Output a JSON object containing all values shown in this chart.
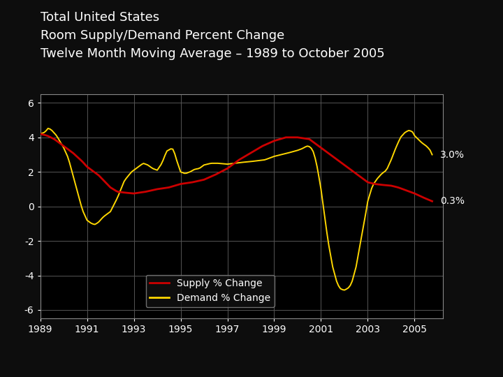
{
  "title_lines": [
    "Total United States",
    "Room Supply/Demand Percent Change",
    "Twelve Month Moving Average – 1989 to October 2005"
  ],
  "background_color": "#0d0d0d",
  "plot_bg_color": "#000000",
  "bottom_bar_color": "#8B3E10",
  "supply_color": "#CC0000",
  "demand_color": "#FFD700",
  "supply_label": "Supply % Change",
  "demand_label": "Demand % Change",
  "supply_end_label": "0.3%",
  "demand_end_label": "3.0%",
  "yticks": [
    -6,
    -4,
    -2,
    0,
    2,
    4,
    6
  ],
  "xtick_years": [
    1989,
    1991,
    1993,
    1995,
    1997,
    1999,
    2001,
    2003,
    2005
  ],
  "xlim": [
    1989.0,
    2006.2
  ],
  "ylim": [
    -6.5,
    6.5
  ],
  "grid_color": "#555555",
  "title_fontsize": 13,
  "label_fontsize": 10,
  "tick_fontsize": 10,
  "supply_ctrl": [
    [
      1989.0,
      4.2
    ],
    [
      1989.3,
      4.1
    ],
    [
      1989.6,
      3.9
    ],
    [
      1990.0,
      3.5
    ],
    [
      1990.4,
      3.1
    ],
    [
      1990.8,
      2.6
    ],
    [
      1991.0,
      2.3
    ],
    [
      1991.5,
      1.8
    ],
    [
      1992.0,
      1.1
    ],
    [
      1992.3,
      0.85
    ],
    [
      1992.6,
      0.8
    ],
    [
      1993.0,
      0.75
    ],
    [
      1993.5,
      0.85
    ],
    [
      1994.0,
      1.0
    ],
    [
      1994.5,
      1.1
    ],
    [
      1995.0,
      1.3
    ],
    [
      1995.5,
      1.4
    ],
    [
      1996.0,
      1.55
    ],
    [
      1996.5,
      1.85
    ],
    [
      1997.0,
      2.2
    ],
    [
      1997.5,
      2.7
    ],
    [
      1998.0,
      3.1
    ],
    [
      1998.5,
      3.5
    ],
    [
      1999.0,
      3.8
    ],
    [
      1999.5,
      4.0
    ],
    [
      2000.0,
      4.0
    ],
    [
      2000.5,
      3.9
    ],
    [
      2001.0,
      3.4
    ],
    [
      2001.5,
      2.9
    ],
    [
      2002.0,
      2.4
    ],
    [
      2002.5,
      1.9
    ],
    [
      2003.0,
      1.4
    ],
    [
      2003.3,
      1.3
    ],
    [
      2003.6,
      1.25
    ],
    [
      2004.0,
      1.2
    ],
    [
      2004.3,
      1.1
    ],
    [
      2004.6,
      0.95
    ],
    [
      2005.0,
      0.75
    ],
    [
      2005.4,
      0.5
    ],
    [
      2005.75,
      0.3
    ]
  ],
  "demand_ctrl": [
    [
      1989.0,
      4.2
    ],
    [
      1989.2,
      4.3
    ],
    [
      1989.35,
      4.55
    ],
    [
      1989.5,
      4.4
    ],
    [
      1989.7,
      4.1
    ],
    [
      1990.0,
      3.4
    ],
    [
      1990.2,
      2.8
    ],
    [
      1990.4,
      1.8
    ],
    [
      1990.6,
      0.8
    ],
    [
      1990.8,
      -0.2
    ],
    [
      1991.0,
      -0.8
    ],
    [
      1991.2,
      -1.0
    ],
    [
      1991.35,
      -1.05
    ],
    [
      1991.5,
      -0.9
    ],
    [
      1991.7,
      -0.6
    ],
    [
      1992.0,
      -0.3
    ],
    [
      1992.3,
      0.5
    ],
    [
      1992.6,
      1.5
    ],
    [
      1992.9,
      2.0
    ],
    [
      1993.0,
      2.1
    ],
    [
      1993.2,
      2.3
    ],
    [
      1993.4,
      2.5
    ],
    [
      1993.6,
      2.4
    ],
    [
      1993.8,
      2.2
    ],
    [
      1994.0,
      2.1
    ],
    [
      1994.2,
      2.5
    ],
    [
      1994.4,
      3.2
    ],
    [
      1994.6,
      3.35
    ],
    [
      1994.7,
      3.3
    ],
    [
      1994.8,
      2.8
    ],
    [
      1995.0,
      2.0
    ],
    [
      1995.2,
      1.9
    ],
    [
      1995.4,
      2.0
    ],
    [
      1995.6,
      2.15
    ],
    [
      1995.8,
      2.2
    ],
    [
      1996.0,
      2.4
    ],
    [
      1996.3,
      2.5
    ],
    [
      1996.6,
      2.5
    ],
    [
      1997.0,
      2.45
    ],
    [
      1997.3,
      2.5
    ],
    [
      1997.6,
      2.55
    ],
    [
      1998.0,
      2.6
    ],
    [
      1998.3,
      2.65
    ],
    [
      1998.6,
      2.7
    ],
    [
      1999.0,
      2.9
    ],
    [
      1999.3,
      3.0
    ],
    [
      1999.6,
      3.1
    ],
    [
      2000.0,
      3.25
    ],
    [
      2000.2,
      3.35
    ],
    [
      2000.4,
      3.5
    ],
    [
      2000.55,
      3.45
    ],
    [
      2000.7,
      3.1
    ],
    [
      2000.85,
      2.2
    ],
    [
      2001.0,
      1.0
    ],
    [
      2001.15,
      -0.5
    ],
    [
      2001.3,
      -2.0
    ],
    [
      2001.5,
      -3.5
    ],
    [
      2001.7,
      -4.5
    ],
    [
      2001.85,
      -4.8
    ],
    [
      2002.0,
      -4.85
    ],
    [
      2002.15,
      -4.75
    ],
    [
      2002.3,
      -4.5
    ],
    [
      2002.5,
      -3.5
    ],
    [
      2002.7,
      -2.0
    ],
    [
      2002.9,
      -0.5
    ],
    [
      2003.0,
      0.3
    ],
    [
      2003.2,
      1.2
    ],
    [
      2003.4,
      1.6
    ],
    [
      2003.6,
      1.9
    ],
    [
      2003.8,
      2.1
    ],
    [
      2004.0,
      2.7
    ],
    [
      2004.2,
      3.4
    ],
    [
      2004.4,
      4.0
    ],
    [
      2004.6,
      4.3
    ],
    [
      2004.75,
      4.4
    ],
    [
      2004.9,
      4.35
    ],
    [
      2005.0,
      4.1
    ],
    [
      2005.15,
      3.9
    ],
    [
      2005.3,
      3.7
    ],
    [
      2005.5,
      3.5
    ],
    [
      2005.65,
      3.3
    ],
    [
      2005.75,
      3.0
    ]
  ]
}
